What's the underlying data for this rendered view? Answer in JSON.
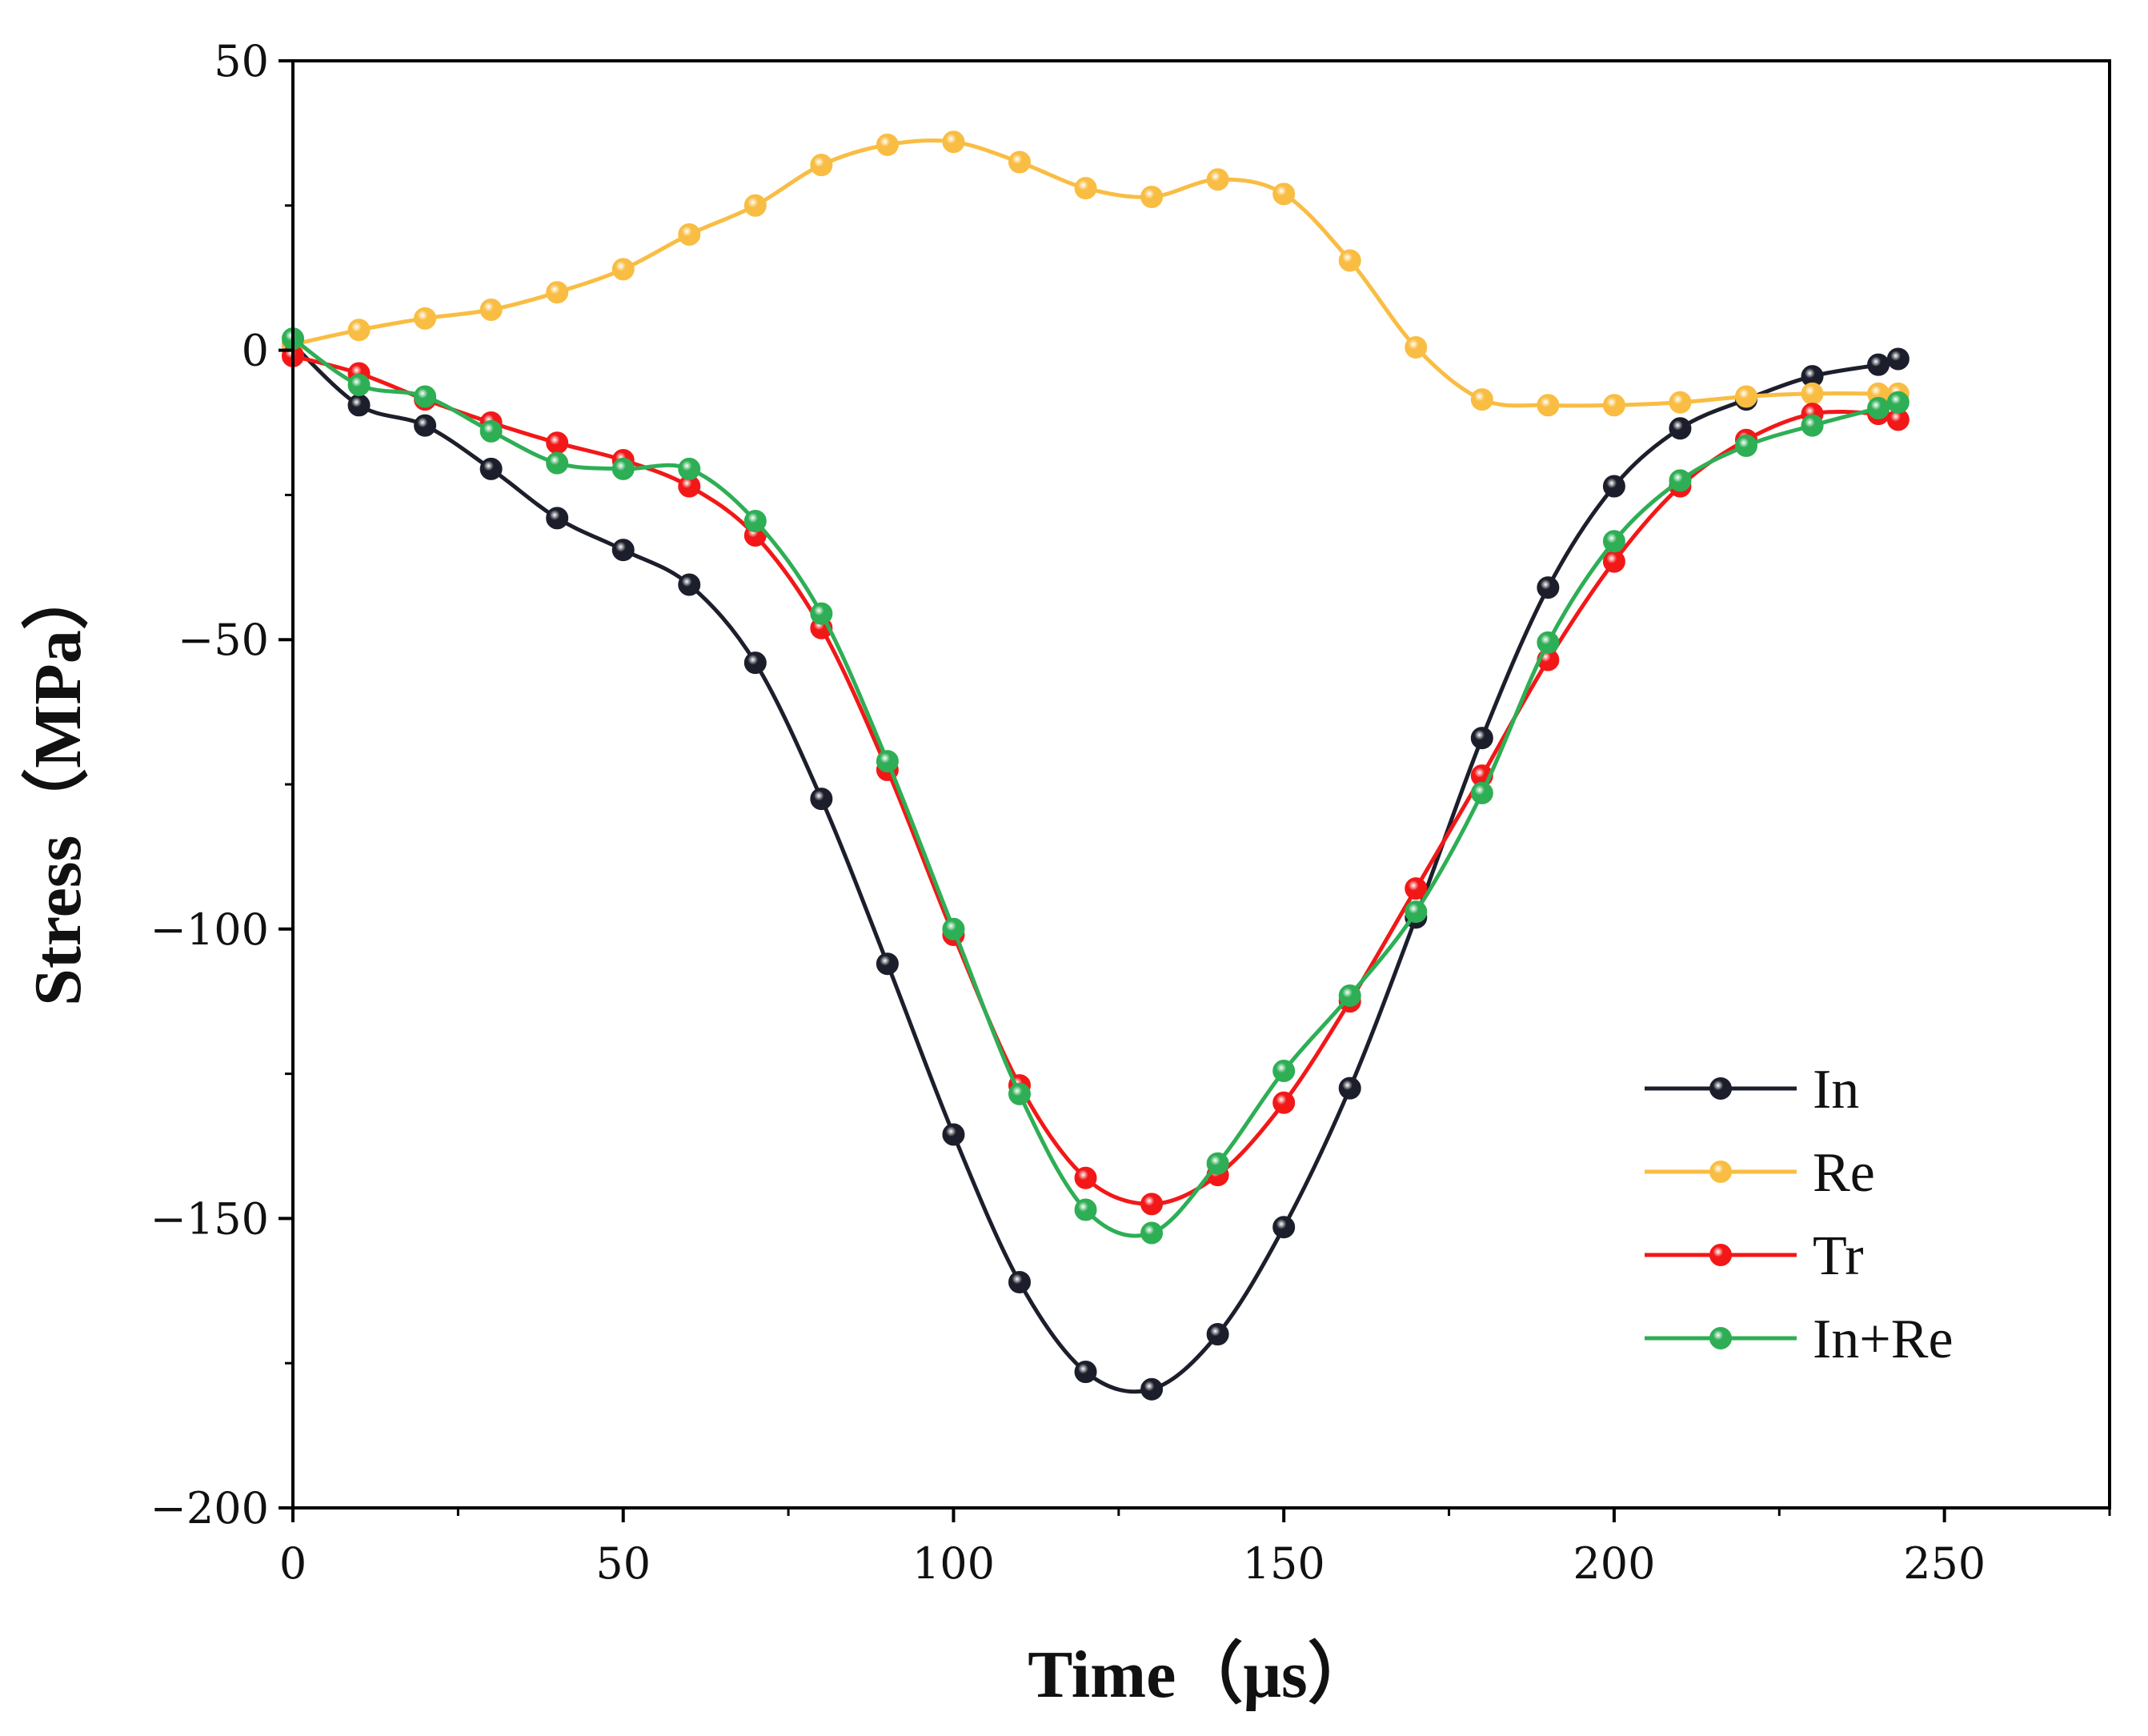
{
  "chart_data": {
    "type": "line",
    "title": "",
    "xlabel": "Time（μs）",
    "ylabel": "Stress（MPa）",
    "xlim": [
      0,
      275
    ],
    "ylim": [
      -200,
      50
    ],
    "x_ticks": [
      0,
      50,
      100,
      150,
      200,
      250
    ],
    "x_tick_labels": [
      "0",
      "50",
      "100",
      "150",
      "200",
      "250"
    ],
    "y_ticks": [
      50,
      0,
      -50,
      -100,
      -150,
      -200
    ],
    "y_tick_labels": [
      "50",
      "0",
      "−50",
      "−100",
      "−150",
      "−200"
    ],
    "grid": false,
    "legend_position": "bottom-right",
    "series": [
      {
        "name": "In",
        "color": "#1c1f2b",
        "x": [
          0,
          10,
          20,
          30,
          40,
          50,
          60,
          70,
          80,
          90,
          100,
          110,
          120,
          130,
          140,
          150,
          160,
          170,
          180,
          190,
          200,
          210,
          220,
          230,
          240,
          243
        ],
        "y": [
          1,
          -9.5,
          -13,
          -20.5,
          -29,
          -34.5,
          -40.5,
          -54,
          -77.5,
          -106,
          -135.5,
          -161,
          -176.5,
          -179.5,
          -170,
          -151.5,
          -127.5,
          -98,
          -67,
          -41,
          -23.5,
          -13.5,
          -8.5,
          -4.5,
          -2.5,
          -1.5
        ]
      },
      {
        "name": "Re",
        "color": "#f9bd43",
        "x": [
          0,
          10,
          20,
          30,
          40,
          50,
          60,
          70,
          80,
          90,
          100,
          110,
          120,
          130,
          140,
          150,
          160,
          170,
          180,
          190,
          200,
          210,
          220,
          230,
          240,
          243
        ],
        "y": [
          1,
          3.5,
          5.5,
          7,
          10,
          14,
          20,
          25,
          32,
          35.5,
          36,
          32.5,
          28,
          26.5,
          29.5,
          27,
          15.5,
          0.5,
          -8.5,
          -9.5,
          -9.5,
          -9,
          -8,
          -7.5,
          -7.5,
          -7.5
        ]
      },
      {
        "name": "Tr",
        "color": "#f21818",
        "x": [
          0,
          10,
          20,
          30,
          40,
          50,
          60,
          70,
          80,
          90,
          100,
          110,
          120,
          130,
          140,
          150,
          160,
          170,
          180,
          190,
          200,
          210,
          220,
          230,
          240,
          243
        ],
        "y": [
          -1,
          -4,
          -8.5,
          -12.5,
          -16,
          -19,
          -23.5,
          -32,
          -48,
          -72.5,
          -101,
          -127,
          -143,
          -147.5,
          -142.5,
          -130,
          -112.5,
          -93,
          -73.5,
          -53.5,
          -36.5,
          -23.5,
          -15.5,
          -11,
          -11,
          -12
        ]
      },
      {
        "name": "In+Re",
        "color": "#2eae55",
        "x": [
          0,
          10,
          20,
          30,
          40,
          50,
          60,
          70,
          80,
          90,
          100,
          110,
          120,
          130,
          140,
          150,
          160,
          170,
          180,
          190,
          200,
          210,
          220,
          230,
          240,
          243
        ],
        "y": [
          2,
          -6,
          -8,
          -14,
          -19.5,
          -20.5,
          -20.5,
          -29.5,
          -45.5,
          -71,
          -100,
          -128.5,
          -148.5,
          -152.5,
          -140.5,
          -124.5,
          -111.5,
          -97,
          -76.5,
          -50.5,
          -33,
          -22.5,
          -16.5,
          -13,
          -10,
          -9
        ]
      }
    ]
  }
}
